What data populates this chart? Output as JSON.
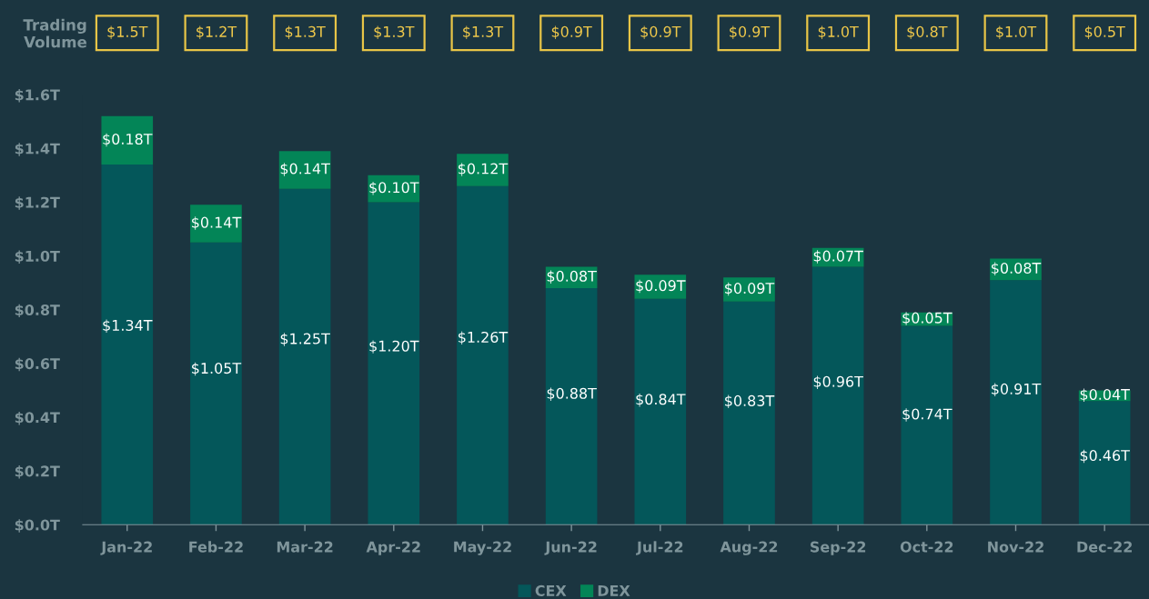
{
  "chart_data": {
    "type": "bar",
    "stacked": true,
    "categories": [
      "Jan-22",
      "Feb-22",
      "Mar-22",
      "Apr-22",
      "May-22",
      "Jun-22",
      "Jul-22",
      "Aug-22",
      "Sep-22",
      "Oct-22",
      "Nov-22",
      "Dec-22"
    ],
    "series": [
      {
        "name": "CEX",
        "color": "#04575a",
        "values": [
          1.34,
          1.05,
          1.25,
          1.2,
          1.26,
          0.88,
          0.84,
          0.83,
          0.96,
          0.74,
          0.91,
          0.46
        ],
        "value_labels": [
          "$1.34T",
          "$1.05T",
          "$1.25T",
          "$1.20T",
          "$1.26T",
          "$0.88T",
          "$0.84T",
          "$0.83T",
          "$0.96T",
          "$0.74T",
          "$0.91T",
          "$0.46T"
        ]
      },
      {
        "name": "DEX",
        "color": "#038557",
        "values": [
          0.18,
          0.14,
          0.14,
          0.1,
          0.12,
          0.08,
          0.09,
          0.09,
          0.07,
          0.05,
          0.08,
          0.04
        ],
        "value_labels": [
          "$0.18T",
          "$0.14T",
          "$0.14T",
          "$0.10T",
          "$0.12T",
          "$0.08T",
          "$0.09T",
          "$0.09T",
          "$0.07T",
          "$0.05T",
          "$0.08T",
          "$0.04T"
        ]
      }
    ],
    "annotations": [
      "Trading Volume",
      "$1.5T",
      "$1.2T",
      "$1.3T",
      "$1.3T",
      "$1.3T",
      "$0.9T",
      "$0.9T",
      "$0.9T",
      "$1.0T",
      "$0.8T",
      "$1.0T",
      "$0.5T"
    ],
    "ylim": [
      0,
      1.6
    ],
    "yticks": [
      {
        "value": 0,
        "label": "$0.0T"
      },
      {
        "value": 0.2,
        "label": "$0.2T"
      },
      {
        "value": 0.4,
        "label": "$0.4T"
      },
      {
        "value": 0.6,
        "label": "$0.6T"
      },
      {
        "value": 0.8,
        "label": "$0.8T"
      },
      {
        "value": 1.0,
        "label": "$1.0T"
      },
      {
        "value": 1.2,
        "label": "$1.2T"
      },
      {
        "value": 1.4,
        "label": "$1.4T"
      },
      {
        "value": 1.6,
        "label": "$1.6T"
      }
    ],
    "grid": false,
    "legend": "bottom"
  }
}
